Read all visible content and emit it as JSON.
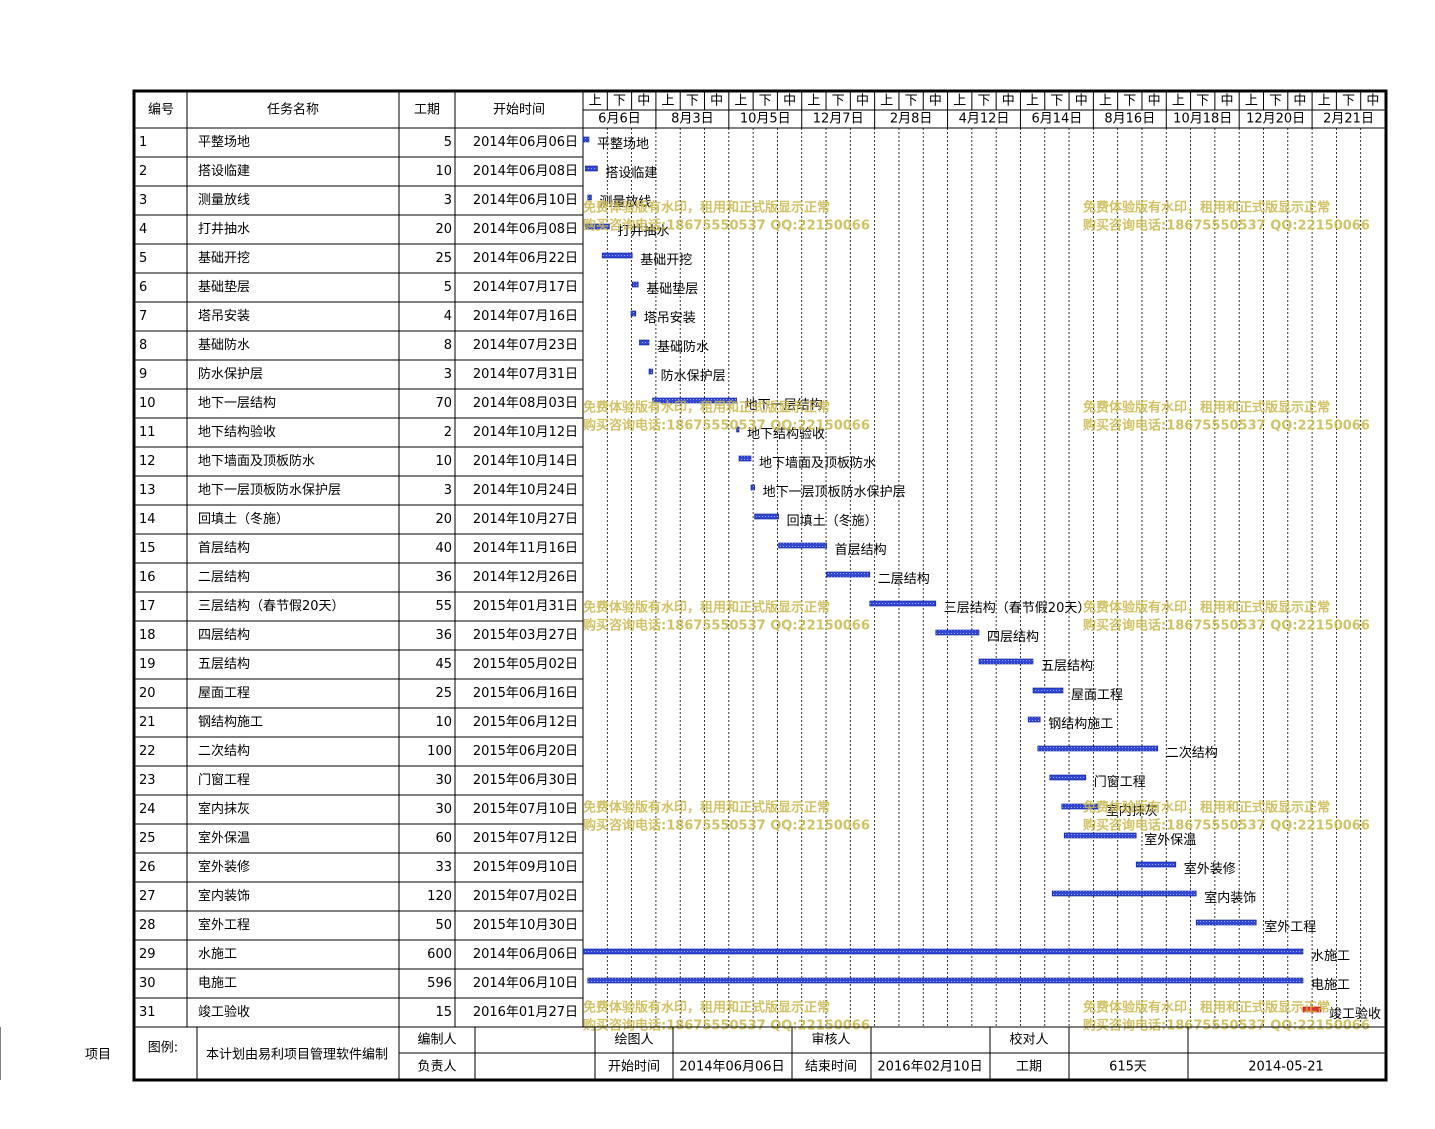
{
  "header": {
    "columns": [
      "编号",
      "任务名称",
      "工期",
      "开始时间"
    ],
    "timeline_top": [
      "上",
      "下",
      "中",
      "上",
      "下",
      "中",
      "上",
      "下",
      "中",
      "上",
      "下",
      "中",
      "上",
      "下",
      "中",
      "上",
      "下",
      "中",
      "上",
      "下",
      "中",
      "上",
      "下",
      "中",
      "上",
      "下",
      "中",
      "上",
      "下",
      "中",
      "上",
      "下",
      "中"
    ],
    "timeline_dates": [
      "6月6日",
      "8月3日",
      "10月5日",
      "12月7日",
      "2月8日",
      "4月12日",
      "6月14日",
      "8月16日",
      "10月18日",
      "12月20日",
      "2月21日"
    ]
  },
  "tasks": [
    {
      "id": 1,
      "name": "平整场地",
      "duration": 5,
      "start": "2014年06月06日"
    },
    {
      "id": 2,
      "name": "搭设临建",
      "duration": 10,
      "start": "2014年06月08日"
    },
    {
      "id": 3,
      "name": "测量放线",
      "duration": 3,
      "start": "2014年06月10日"
    },
    {
      "id": 4,
      "name": "打井抽水",
      "duration": 20,
      "start": "2014年06月08日"
    },
    {
      "id": 5,
      "name": "基础开挖",
      "duration": 25,
      "start": "2014年06月22日"
    },
    {
      "id": 6,
      "name": "基础垫层",
      "duration": 5,
      "start": "2014年07月17日"
    },
    {
      "id": 7,
      "name": "塔吊安装",
      "duration": 4,
      "start": "2014年07月16日"
    },
    {
      "id": 8,
      "name": "基础防水",
      "duration": 8,
      "start": "2014年07月23日"
    },
    {
      "id": 9,
      "name": "防水保护层",
      "duration": 3,
      "start": "2014年07月31日"
    },
    {
      "id": 10,
      "name": "地下一层结构",
      "duration": 70,
      "start": "2014年08月03日"
    },
    {
      "id": 11,
      "name": "地下结构验收",
      "duration": 2,
      "start": "2014年10月12日"
    },
    {
      "id": 12,
      "name": "地下墙面及顶板防水",
      "duration": 10,
      "start": "2014年10月14日"
    },
    {
      "id": 13,
      "name": "地下一层顶板防水保护层",
      "duration": 3,
      "start": "2014年10月24日"
    },
    {
      "id": 14,
      "name": "回填土（冬施）",
      "duration": 20,
      "start": "2014年10月27日"
    },
    {
      "id": 15,
      "name": "首层结构",
      "duration": 40,
      "start": "2014年11月16日"
    },
    {
      "id": 16,
      "name": "二层结构",
      "duration": 36,
      "start": "2014年12月26日"
    },
    {
      "id": 17,
      "name": "三层结构（春节假20天）",
      "duration": 55,
      "start": "2015年01月31日"
    },
    {
      "id": 18,
      "name": "四层结构",
      "duration": 36,
      "start": "2015年03月27日"
    },
    {
      "id": 19,
      "name": "五层结构",
      "duration": 45,
      "start": "2015年05月02日"
    },
    {
      "id": 20,
      "name": "屋面工程",
      "duration": 25,
      "start": "2015年06月16日"
    },
    {
      "id": 21,
      "name": "钢结构施工",
      "duration": 10,
      "start": "2015年06月12日"
    },
    {
      "id": 22,
      "name": "二次结构",
      "duration": 100,
      "start": "2015年06月20日"
    },
    {
      "id": 23,
      "name": "门窗工程",
      "duration": 30,
      "start": "2015年06月30日"
    },
    {
      "id": 24,
      "name": "室内抹灰",
      "duration": 30,
      "start": "2015年07月10日"
    },
    {
      "id": 25,
      "name": "室外保温",
      "duration": 60,
      "start": "2015年07月12日"
    },
    {
      "id": 26,
      "name": "室外装修",
      "duration": 33,
      "start": "2015年09月10日"
    },
    {
      "id": 27,
      "name": "室内装饰",
      "duration": 120,
      "start": "2015年07月02日"
    },
    {
      "id": 28,
      "name": "室外工程",
      "duration": 50,
      "start": "2015年10月30日"
    },
    {
      "id": 29,
      "name": "水施工",
      "duration": 600,
      "start": "2014年06月06日"
    },
    {
      "id": 30,
      "name": "电施工",
      "duration": 596,
      "start": "2014年06月10日"
    },
    {
      "id": 31,
      "name": "竣工验收",
      "duration": 15,
      "start": "2016年01月27日"
    }
  ],
  "watermark": [
    "免费体验版有水印，租用和正式版显示正常",
    "购买咨询电话:18675550537 QQ:22150066"
  ],
  "footer": {
    "project_label": "项目",
    "legend_label": "图例:",
    "note": "本计划由易利项目管理软件编制",
    "editor_label": "编制人",
    "owner_label": "负责人",
    "drawer_label": "绘图人",
    "start_label": "开始时间",
    "start": "2014年06月06日",
    "reviewer_label": "审核人",
    "end_label": "结束时间",
    "end": "2016年02月10日",
    "checker_label": "校对人",
    "duration_label": "工期",
    "duration": "615天",
    "date": "2014-05-21"
  }
}
